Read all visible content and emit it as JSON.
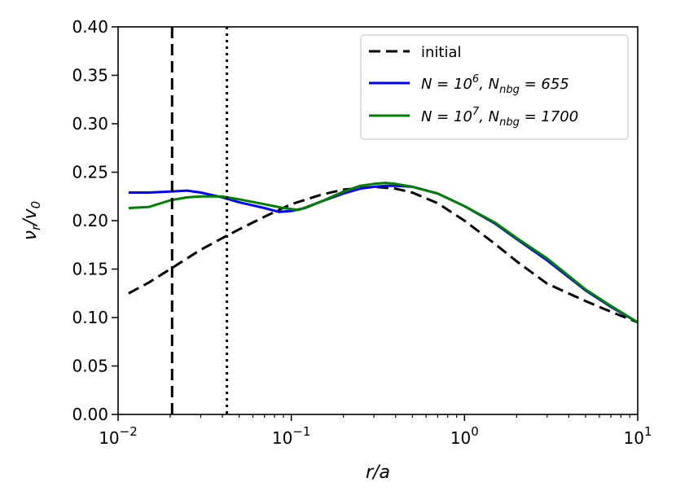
{
  "chart_data": {
    "type": "line",
    "title": "",
    "xlabel": "r/a",
    "ylabel": "ν_r/v_0",
    "xscale": "log",
    "xlim": [
      0.01,
      10
    ],
    "ylim": [
      0.0,
      0.4
    ],
    "grid": false,
    "legend_position": "top-right",
    "x_tick_labels": [
      {
        "value": 0.01,
        "base": "10",
        "exp": "−2"
      },
      {
        "value": 0.1,
        "base": "10",
        "exp": "−1"
      },
      {
        "value": 1,
        "base": "10",
        "exp": "0"
      },
      {
        "value": 10,
        "base": "10",
        "exp": "1"
      }
    ],
    "y_ticks": [
      0.0,
      0.05,
      0.1,
      0.15,
      0.2,
      0.25,
      0.3,
      0.35,
      0.4
    ],
    "y_tick_labels": [
      "0.00",
      "0.05",
      "0.10",
      "0.15",
      "0.20",
      "0.25",
      "0.30",
      "0.35",
      "0.40"
    ],
    "vertical_lines": [
      {
        "x": 0.0205,
        "style": "dashed",
        "color": "#000000"
      },
      {
        "x": 0.0425,
        "style": "dotted",
        "color": "#000000"
      }
    ],
    "series": [
      {
        "name": "initial",
        "legend_label": "initial",
        "color": "#000000",
        "style": "dashed",
        "x": [
          0.0115,
          0.015,
          0.02,
          0.025,
          0.03,
          0.04,
          0.05,
          0.07,
          0.1,
          0.15,
          0.2,
          0.3,
          0.4,
          0.5,
          0.7,
          1.0,
          1.5,
          2.0,
          3.0,
          5.0,
          7.0,
          10.0
        ],
        "y": [
          0.125,
          0.136,
          0.15,
          0.161,
          0.17,
          0.182,
          0.191,
          0.204,
          0.217,
          0.227,
          0.232,
          0.235,
          0.233,
          0.229,
          0.218,
          0.2,
          0.176,
          0.158,
          0.135,
          0.117,
          0.106,
          0.095
        ]
      },
      {
        "name": "N=10^6, N_nbg=655",
        "legend_label": {
          "pre": "N = 10",
          "sup": "6",
          "mid": ", N",
          "sub": "nbg",
          "post": " = 655"
        },
        "color": "#0000ff",
        "style": "solid",
        "x": [
          0.0115,
          0.015,
          0.02,
          0.025,
          0.03,
          0.04,
          0.05,
          0.07,
          0.085,
          0.1,
          0.12,
          0.15,
          0.2,
          0.25,
          0.3,
          0.35,
          0.4,
          0.5,
          0.7,
          1.0,
          1.5,
          2.0,
          3.0,
          5.0,
          7.0,
          10.0
        ],
        "y": [
          0.229,
          0.229,
          0.23,
          0.231,
          0.229,
          0.224,
          0.219,
          0.213,
          0.209,
          0.21,
          0.213,
          0.22,
          0.228,
          0.233,
          0.235,
          0.236,
          0.236,
          0.235,
          0.228,
          0.215,
          0.197,
          0.181,
          0.159,
          0.128,
          0.111,
          0.095
        ]
      },
      {
        "name": "N=10^7, N_nbg=1700",
        "legend_label": {
          "pre": "N = 10",
          "sup": "7",
          "mid": ", N",
          "sub": "nbg",
          "post": " = 1700"
        },
        "color": "#008000",
        "style": "solid",
        "x": [
          0.0115,
          0.015,
          0.02,
          0.025,
          0.03,
          0.04,
          0.05,
          0.07,
          0.09,
          0.11,
          0.15,
          0.2,
          0.25,
          0.3,
          0.35,
          0.4,
          0.5,
          0.7,
          1.0,
          1.5,
          2.0,
          3.0,
          5.0,
          7.0,
          10.0
        ],
        "y": [
          0.213,
          0.214,
          0.221,
          0.224,
          0.225,
          0.225,
          0.222,
          0.217,
          0.213,
          0.211,
          0.22,
          0.23,
          0.236,
          0.238,
          0.239,
          0.238,
          0.235,
          0.228,
          0.215,
          0.198,
          0.182,
          0.161,
          0.129,
          0.112,
          0.095
        ]
      }
    ]
  }
}
